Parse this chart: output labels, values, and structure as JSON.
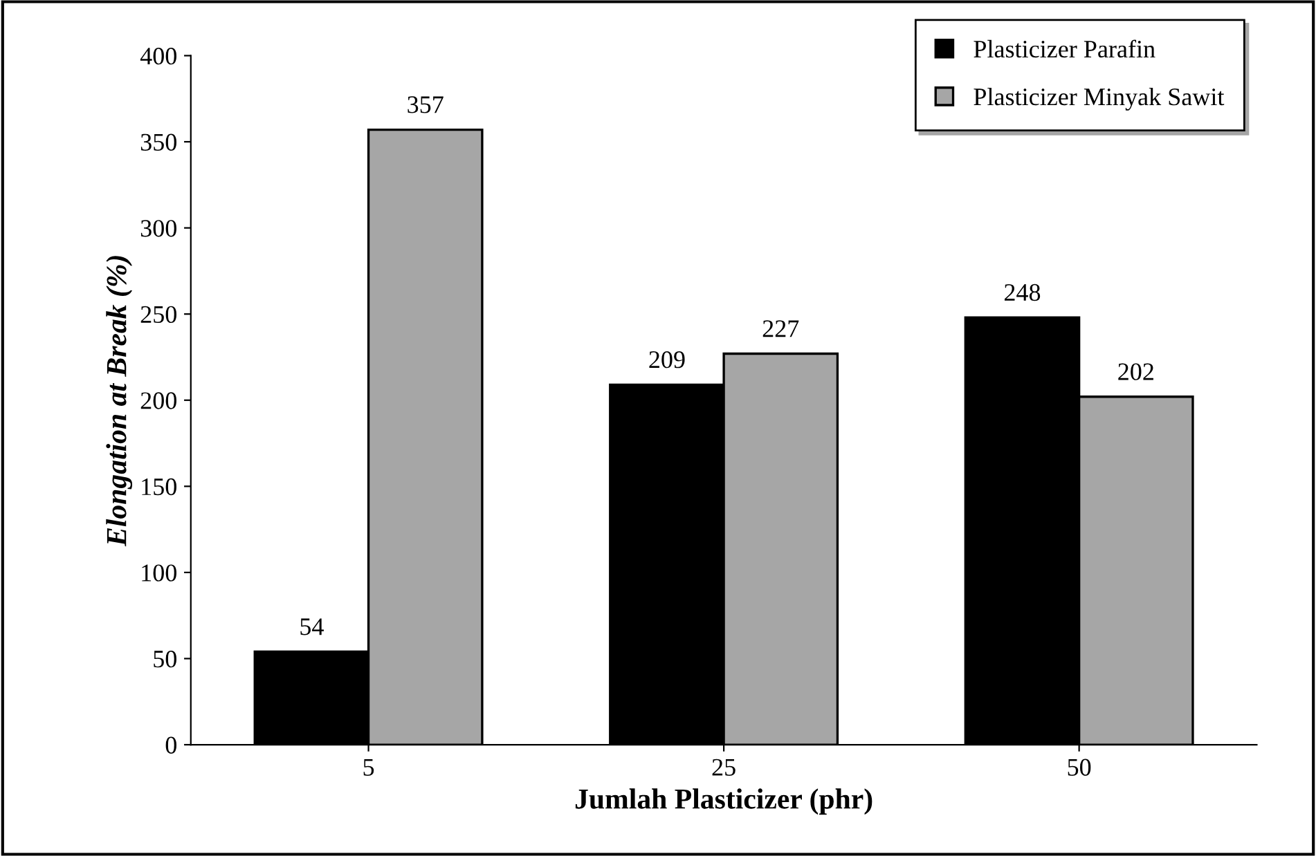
{
  "chart_data": {
    "type": "bar",
    "xlabel": "Jumlah Plasticizer (phr)",
    "ylabel": "Elongation at Break (%)",
    "categories": [
      "5",
      "25",
      "50"
    ],
    "series": [
      {
        "name": "Plasticizer Parafin",
        "color": "#000000",
        "values": [
          54,
          209,
          248
        ]
      },
      {
        "name": "Plasticizer Minyak Sawit",
        "color": "#a6a6a6",
        "values": [
          357,
          227,
          202
        ]
      }
    ],
    "ylim": [
      0,
      400
    ],
    "yticks": [
      0,
      50,
      100,
      150,
      200,
      250,
      300,
      350,
      400
    ],
    "data_labels": true,
    "grid": false,
    "legend": "top right"
  }
}
